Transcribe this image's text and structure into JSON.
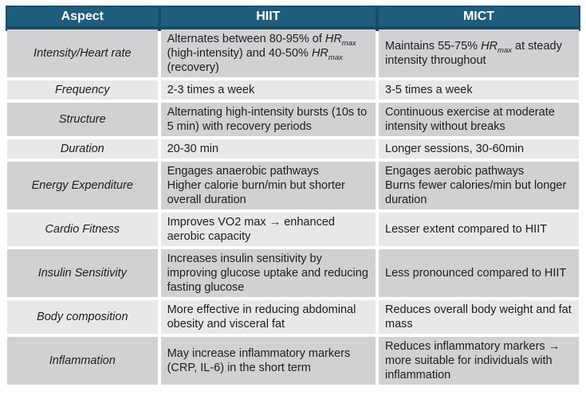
{
  "colors": {
    "header_bg": "#1F5D7C",
    "header_edge": "#174C66",
    "header_text": "#FFFFFF",
    "row_dark": "#D1D0D2",
    "row_light": "#E8E7E9",
    "body_text": "#1D1D1F",
    "page_bg": "#FFFFFF"
  },
  "table": {
    "header": {
      "aspect": "Aspect",
      "hiit": "HIIT",
      "mict": "MICT"
    },
    "rows": [
      {
        "aspect": "Intensity/Heart rate",
        "hiit": [
          [
            {
              "t": "Alternates between 80-95% of "
            },
            {
              "t": "HR",
              "v": true
            },
            {
              "t": "max",
              "v": true,
              "s": true
            },
            {
              "t": " (high-intensity) and 40-50% "
            },
            {
              "t": "HR",
              "v": true
            },
            {
              "t": "max",
              "v": true,
              "s": true
            },
            {
              "t": " (recovery)"
            }
          ]
        ],
        "mict": [
          [
            {
              "t": "Maintains 55-75% "
            },
            {
              "t": "HR",
              "v": true
            },
            {
              "t": "max",
              "v": true,
              "s": true
            },
            {
              "t": " at steady intensity throughout"
            }
          ]
        ]
      },
      {
        "aspect": "Frequency",
        "hiit": [
          [
            {
              "t": "2-3 times a week"
            }
          ]
        ],
        "mict": [
          [
            {
              "t": "3-5 times a week"
            }
          ]
        ]
      },
      {
        "aspect": "Structure",
        "hiit": [
          [
            {
              "t": "Alternating high-intensity bursts (10s to 5 min) with recovery periods"
            }
          ]
        ],
        "mict": [
          [
            {
              "t": "Continuous exercise at moderate intensity without breaks"
            }
          ]
        ]
      },
      {
        "aspect": "Duration",
        "hiit": [
          [
            {
              "t": "20-30 min"
            }
          ]
        ],
        "mict": [
          [
            {
              "t": "Longer sessions, 30-60min"
            }
          ]
        ]
      },
      {
        "aspect": "Energy Expenditure",
        "hiit": [
          [
            {
              "t": "Engages anaerobic pathways"
            }
          ],
          [
            {
              "t": "Higher calorie burn/min but shorter overall duration"
            }
          ]
        ],
        "mict": [
          [
            {
              "t": "Engages aerobic pathways"
            }
          ],
          [
            {
              "t": "Burns fewer calories/min but longer duration"
            }
          ]
        ]
      },
      {
        "aspect": "Cardio Fitness",
        "hiit": [
          [
            {
              "t": "Improves VO2 max → enhanced aerobic capacity"
            }
          ]
        ],
        "mict": [
          [
            {
              "t": "Lesser extent compared to HIIT"
            }
          ]
        ]
      },
      {
        "aspect": "Insulin Sensitivity",
        "hiit": [
          [
            {
              "t": "Increases insulin sensitivity by improving glucose uptake and reducing fasting glucose"
            }
          ]
        ],
        "mict": [
          [
            {
              "t": "Less pronounced compared to HIIT"
            }
          ]
        ]
      },
      {
        "aspect": "Body composition",
        "hiit": [
          [
            {
              "t": "More effective in reducing abdominal obesity and visceral fat"
            }
          ]
        ],
        "mict": [
          [
            {
              "t": "Reduces overall body weight and fat mass"
            }
          ]
        ]
      },
      {
        "aspect": "Inflammation",
        "hiit": [
          [
            {
              "t": "May increase inflammatory markers (CRP, IL-6) in the short term"
            }
          ]
        ],
        "mict": [
          [
            {
              "t": "Reduces inflammatory markers → more suitable for individuals with inflammation"
            }
          ]
        ]
      }
    ]
  }
}
